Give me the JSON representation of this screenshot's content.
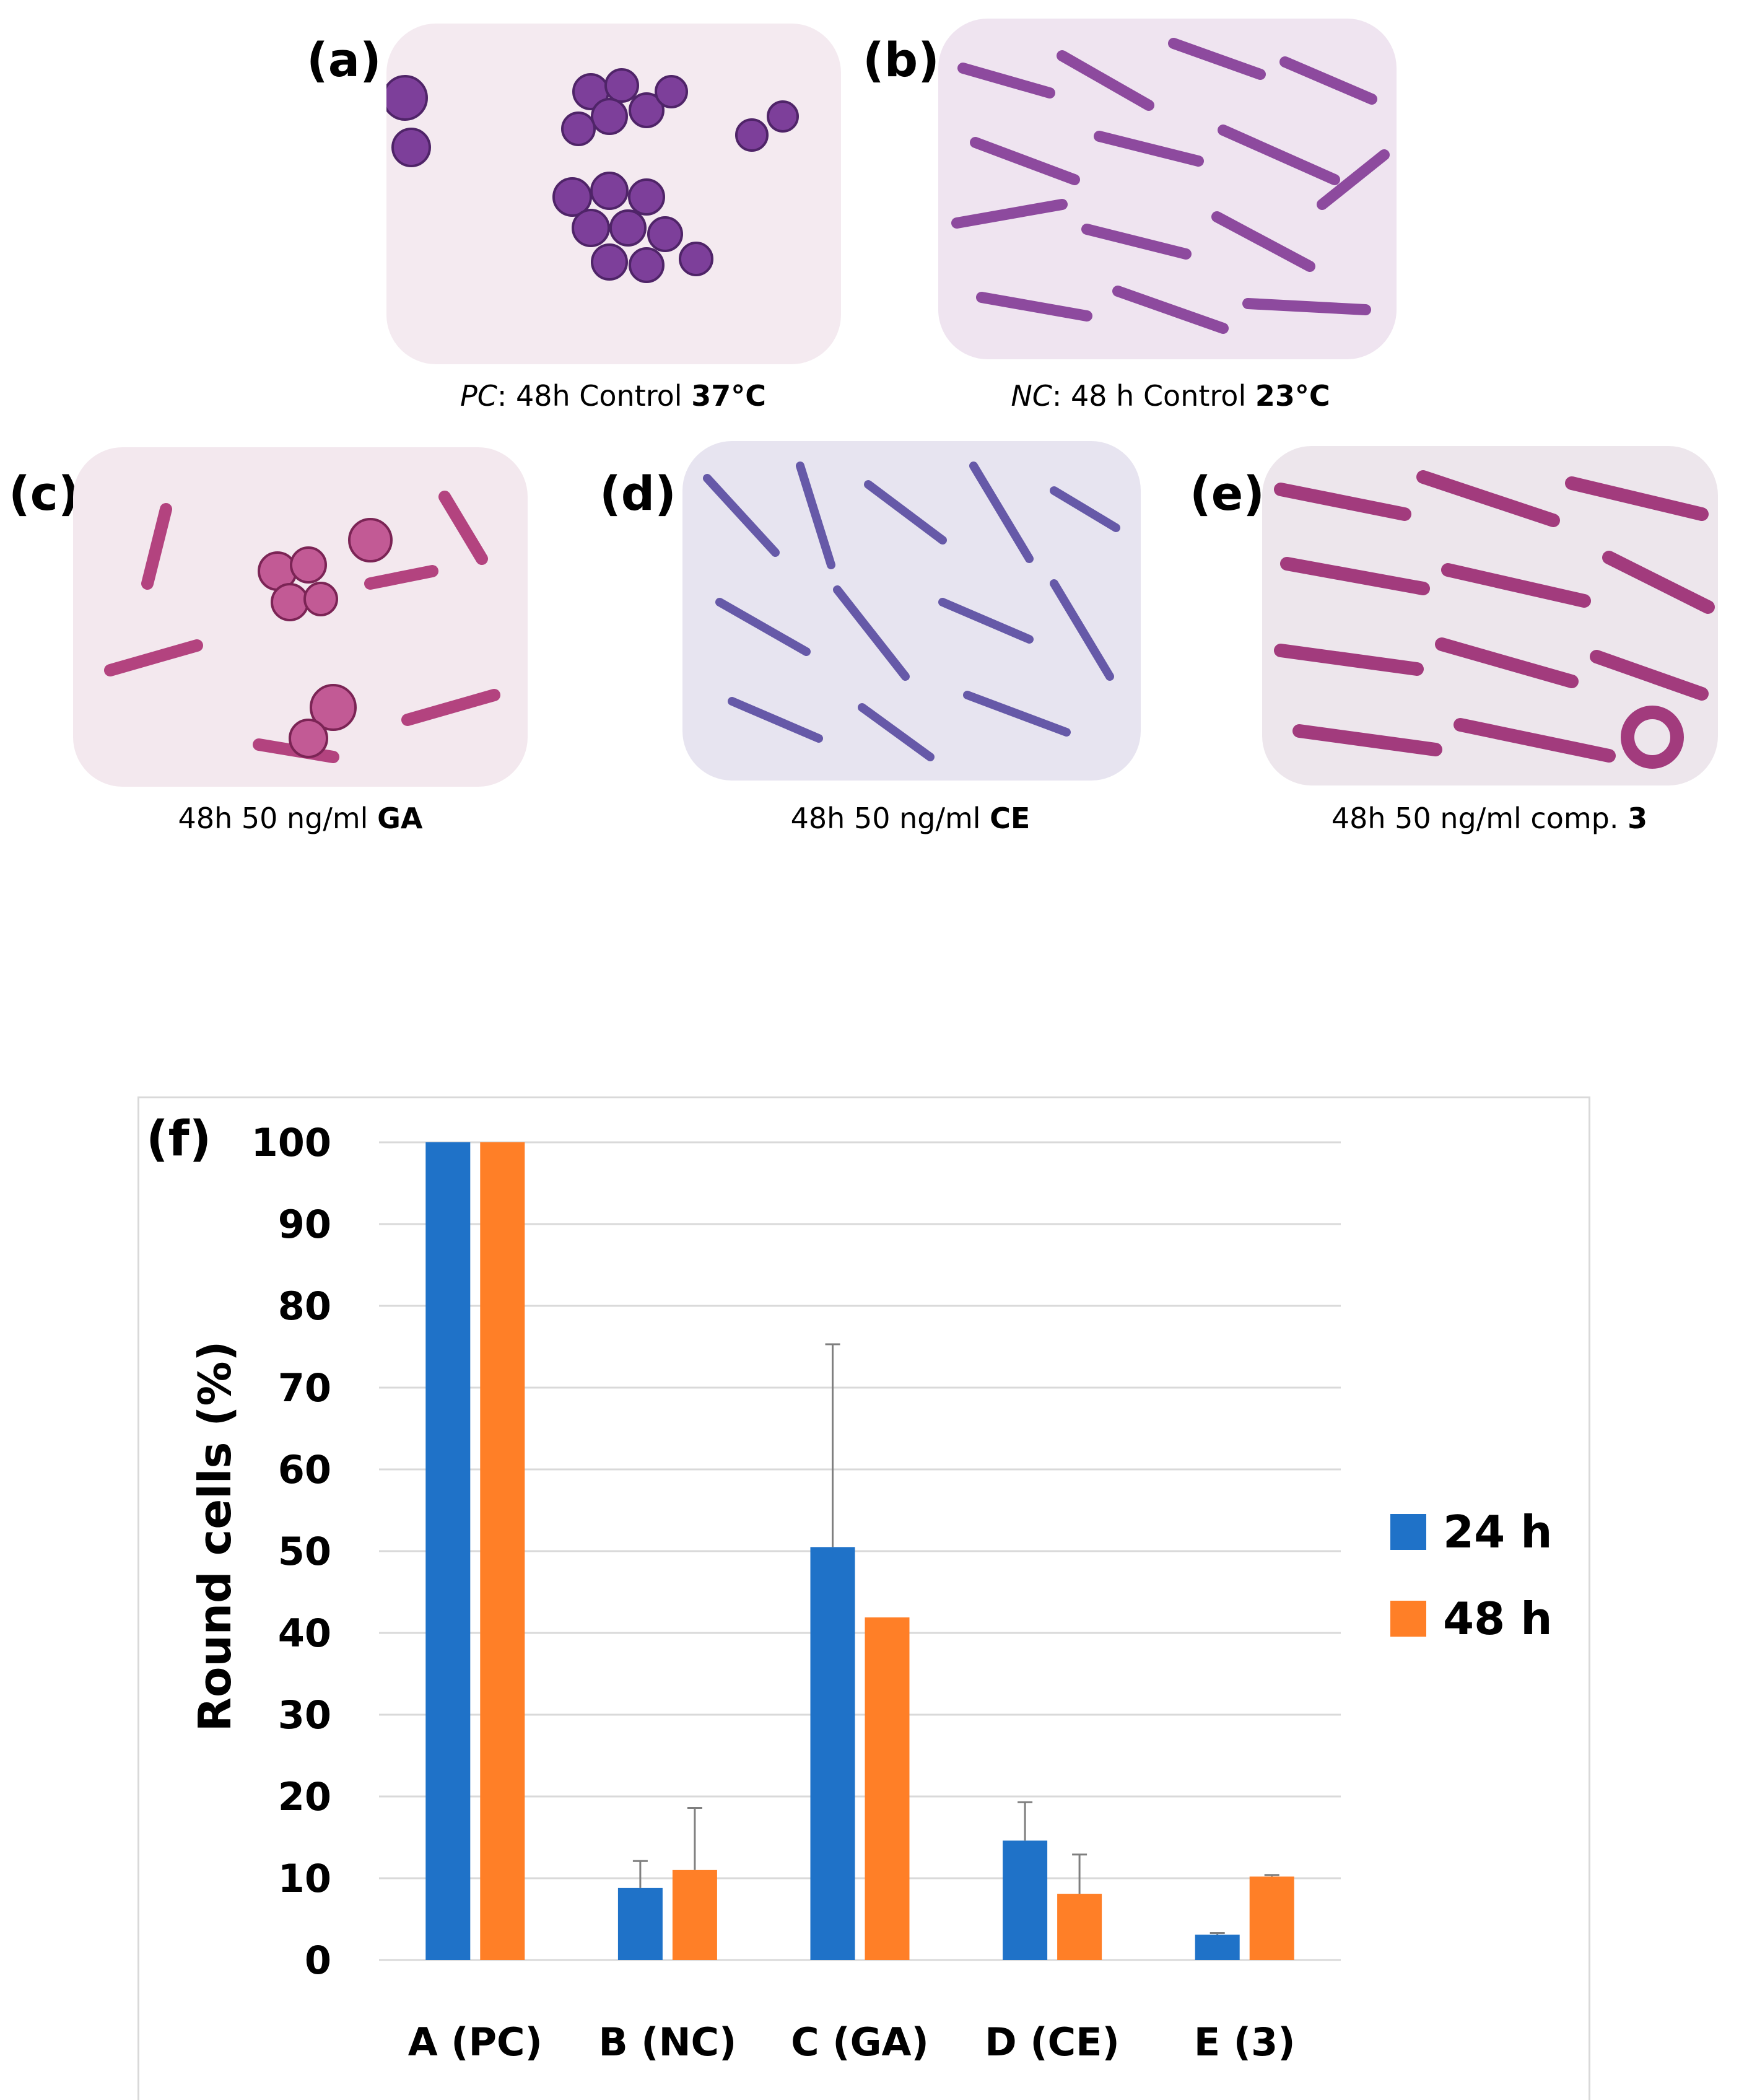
{
  "panels": [
    {
      "letter": "(a)",
      "caption_prefix": "PC",
      "caption_mid": ": 48h Control ",
      "caption_bold": "37°C"
    },
    {
      "letter": "(b)",
      "caption_prefix": "NC",
      "caption_mid": ": 48 h Control ",
      "caption_bold": "23°C"
    },
    {
      "letter": "(c)",
      "caption_prefix": "",
      "caption_mid": "48h 50 ng/ml ",
      "caption_bold": "GA"
    },
    {
      "letter": "(d)",
      "caption_prefix": "",
      "caption_mid": "48h 50 ng/ml ",
      "caption_bold": "CE"
    },
    {
      "letter": "(e)",
      "caption_prefix": "",
      "caption_mid": "48h 50 ng/ml comp. ",
      "caption_bold": "3"
    }
  ],
  "colors": {
    "series_24h": "#1f72c8",
    "series_48h": "#ff7f27",
    "gridline": "#d9d9d9",
    "error_bar": "#7f7f7f",
    "stain_dark": "#8a3a8f",
    "stain_light": "#c07fb6"
  },
  "chart_data": {
    "type": "bar",
    "panel_label": "(f)",
    "title": "",
    "xlabel": "",
    "ylabel": "Round cells (%)",
    "ylim": [
      0,
      100
    ],
    "yticks": [
      0,
      10,
      20,
      30,
      40,
      50,
      60,
      70,
      80,
      90,
      100
    ],
    "grid": true,
    "legend_position": "right",
    "categories": [
      "A (PC)",
      "B (NC)",
      "C (GA)",
      "D (CE)",
      "E (3)"
    ],
    "series": [
      {
        "name": "24 h",
        "values": [
          100,
          8.8,
          50.5,
          14.6,
          3.1
        ],
        "errors": [
          0,
          3.3,
          24.8,
          4.7,
          0.2
        ]
      },
      {
        "name": "48 h",
        "values": [
          100,
          11,
          41.9,
          8.1,
          10.2
        ],
        "errors": [
          0,
          7.6,
          0,
          4.8,
          0.2
        ]
      }
    ]
  }
}
